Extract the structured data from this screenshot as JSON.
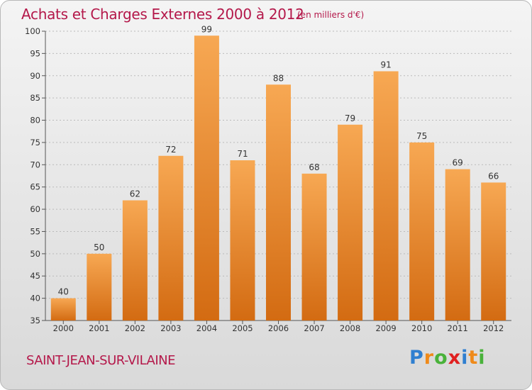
{
  "title": "Achats et Charges Externes 2000 à 2012",
  "unit": "(en milliers d'€)",
  "commune": "SAINT-JEAN-SUR-VILAINE",
  "logo": {
    "letters": [
      "P",
      "r",
      "o",
      "x",
      "i",
      "t",
      "i"
    ],
    "colors": [
      "#2f7fd0",
      "#ef8a1a",
      "#49b23a",
      "#e02020",
      "#2f7fd0",
      "#ef8a1a",
      "#49b23a"
    ]
  },
  "colors": {
    "bar_top": "#f7a853",
    "bar_bottom": "#d36b12",
    "title": "#b4184a",
    "grid": "#bbbbbb"
  },
  "chart_data": {
    "type": "bar",
    "categories": [
      "2000",
      "2001",
      "2002",
      "2003",
      "2004",
      "2005",
      "2006",
      "2007",
      "2008",
      "2009",
      "2010",
      "2011",
      "2012"
    ],
    "values": [
      40,
      50,
      62,
      72,
      99,
      71,
      88,
      68,
      79,
      91,
      75,
      69,
      66
    ],
    "ylim": [
      35,
      100
    ],
    "yticks": [
      35,
      40,
      45,
      50,
      55,
      60,
      65,
      70,
      75,
      80,
      85,
      90,
      95,
      100
    ],
    "grid": true,
    "legend": "none"
  }
}
